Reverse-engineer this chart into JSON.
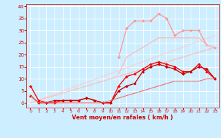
{
  "bg_color": "#cceeff",
  "grid_color": "#ffffff",
  "xlabel": "Vent moyen/en rafales ( km/h )",
  "xlabel_color": "#cc0000",
  "tick_color": "#cc0000",
  "xlim": [
    -0.5,
    23.5
  ],
  "ylim": [
    -2,
    41
  ],
  "yticks": [
    0,
    5,
    10,
    15,
    20,
    25,
    30,
    35,
    40
  ],
  "xticks": [
    0,
    1,
    2,
    3,
    4,
    5,
    6,
    7,
    8,
    9,
    10,
    11,
    12,
    13,
    14,
    15,
    16,
    17,
    18,
    19,
    20,
    21,
    22,
    23
  ],
  "lines": [
    {
      "x": [
        0,
        23
      ],
      "y": [
        0,
        23
      ],
      "color": "#ffbbbb",
      "linewidth": 1.0,
      "marker": null,
      "alpha": 0.9
    },
    {
      "x": [
        0,
        23
      ],
      "y": [
        0,
        28
      ],
      "color": "#ffcccc",
      "linewidth": 1.0,
      "marker": null,
      "alpha": 0.8
    },
    {
      "x": [
        11,
        12,
        13,
        14,
        15,
        16,
        17,
        18,
        19,
        20,
        21,
        22,
        23
      ],
      "y": [
        19,
        31,
        34,
        34,
        34,
        37,
        35,
        28,
        30,
        30,
        30,
        24,
        23
      ],
      "color": "#ff9999",
      "linewidth": 1.0,
      "marker": "D",
      "markersize": 2.0,
      "alpha": 1.0
    },
    {
      "x": [
        11,
        12,
        13,
        14,
        15,
        16,
        17,
        18,
        19,
        20,
        21,
        22,
        23
      ],
      "y": [
        12,
        19,
        21,
        23,
        25,
        27,
        27,
        27,
        27,
        27,
        27,
        24,
        23
      ],
      "color": "#ffbbbb",
      "linewidth": 1.0,
      "marker": null,
      "alpha": 1.0
    },
    {
      "x": [
        0,
        1,
        2,
        3,
        4,
        5,
        6,
        7,
        8,
        9,
        10,
        11,
        12,
        13,
        14,
        15,
        16,
        17,
        18,
        19,
        20,
        21,
        22,
        23
      ],
      "y": [
        7,
        1,
        0,
        0,
        1,
        1,
        1,
        2,
        1,
        0,
        0,
        7,
        11,
        12,
        14,
        16,
        17,
        16,
        15,
        13,
        13,
        16,
        13,
        10
      ],
      "color": "#ff0000",
      "linewidth": 1.0,
      "marker": "D",
      "markersize": 2.0,
      "alpha": 1.0
    },
    {
      "x": [
        0,
        1,
        2,
        3,
        4,
        5,
        6,
        7,
        8,
        9,
        10,
        11,
        12,
        13,
        14,
        15,
        16,
        17,
        18,
        19,
        20,
        21,
        22,
        23
      ],
      "y": [
        3,
        0,
        0,
        1,
        1,
        1,
        1,
        2,
        1,
        0,
        0,
        5,
        7,
        8,
        13,
        15,
        16,
        15,
        14,
        12,
        13,
        15,
        14,
        10
      ],
      "color": "#cc0000",
      "linewidth": 1.0,
      "marker": "D",
      "markersize": 2.0,
      "alpha": 1.0
    },
    {
      "x": [
        0,
        1,
        2,
        3,
        4,
        5,
        6,
        7,
        8,
        9,
        10,
        11,
        12,
        13,
        14,
        15,
        16,
        17,
        18,
        19,
        20,
        21,
        22,
        23
      ],
      "y": [
        3,
        0,
        0,
        0,
        0,
        0,
        0,
        0,
        0,
        0,
        1,
        2,
        3,
        4,
        5,
        6,
        7,
        8,
        9,
        9,
        9,
        9,
        10,
        10
      ],
      "color": "#ff6666",
      "linewidth": 0.8,
      "marker": null,
      "alpha": 1.0
    }
  ]
}
